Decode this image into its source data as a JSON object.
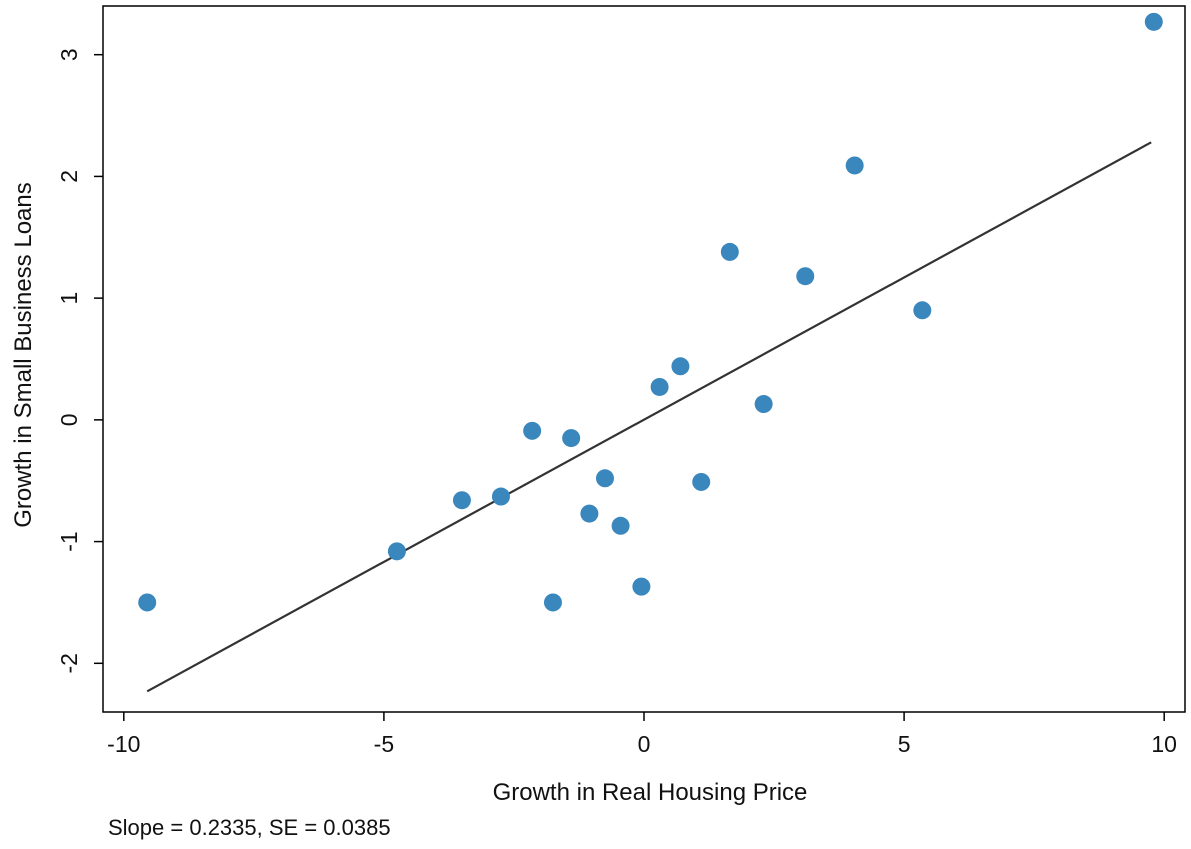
{
  "chart_data": {
    "type": "scatter",
    "title": "",
    "xlabel": "Growth in Real Housing Price",
    "ylabel": "Growth in Small Business Loans",
    "xlim": [
      -10.4,
      10.4
    ],
    "ylim": [
      -2.4,
      3.4
    ],
    "xticks": [
      -10,
      -5,
      0,
      5,
      10
    ],
    "yticks": [
      -2,
      -1,
      0,
      1,
      2,
      3
    ],
    "grid": false,
    "legend": "none",
    "points": [
      {
        "x": -9.55,
        "y": -1.5
      },
      {
        "x": -4.75,
        "y": -1.08
      },
      {
        "x": -3.5,
        "y": -0.66
      },
      {
        "x": -2.75,
        "y": -0.63
      },
      {
        "x": -2.15,
        "y": -0.09
      },
      {
        "x": -1.4,
        "y": -0.15
      },
      {
        "x": -1.75,
        "y": -1.5
      },
      {
        "x": -1.05,
        "y": -0.77
      },
      {
        "x": -0.75,
        "y": -0.48
      },
      {
        "x": -0.45,
        "y": -0.87
      },
      {
        "x": -0.05,
        "y": -1.37
      },
      {
        "x": 0.3,
        "y": 0.27
      },
      {
        "x": 0.7,
        "y": 0.44
      },
      {
        "x": 1.1,
        "y": -0.51
      },
      {
        "x": 1.65,
        "y": 1.38
      },
      {
        "x": 2.3,
        "y": 0.13
      },
      {
        "x": 3.1,
        "y": 1.18
      },
      {
        "x": 4.05,
        "y": 2.09
      },
      {
        "x": 5.35,
        "y": 0.9
      },
      {
        "x": 9.8,
        "y": 3.27
      }
    ],
    "fit_line": {
      "x": [
        -9.55,
        9.75
      ],
      "y": [
        -2.23,
        2.28
      ]
    },
    "colors": {
      "points": "#3a87bd",
      "fit_line": "#333333",
      "axis": "#000000"
    }
  },
  "annotation": "Slope = 0.2335, SE = 0.0385"
}
